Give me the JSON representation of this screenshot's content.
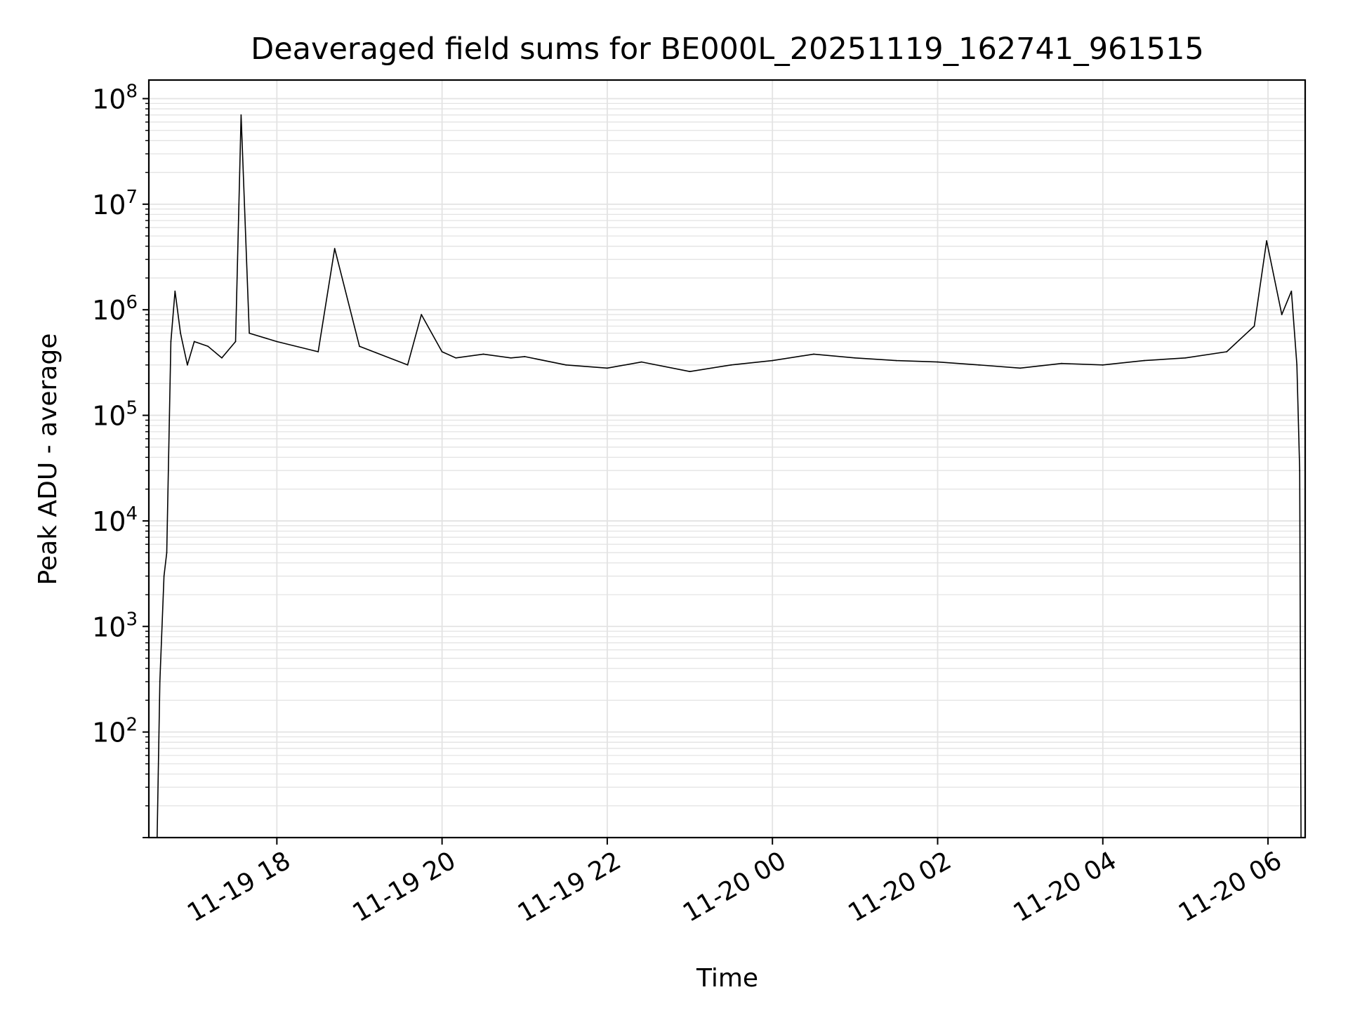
{
  "chart_data": {
    "type": "line",
    "title": "Deaveraged field sums for BE000L_20251119_162741_961515",
    "xlabel": "Time",
    "ylabel": "Peak ADU - average",
    "y_scale": "log",
    "ylim": [
      10,
      150000000
    ],
    "xlim": [
      "2025-11-19 16:27",
      "2025-11-20 06:27"
    ],
    "grid": true,
    "line_color": "#000000",
    "grid_color": "#e3e3e3",
    "x_ticks": [
      {
        "time": "2025-11-19 18:00",
        "label": "11-19 18"
      },
      {
        "time": "2025-11-19 20:00",
        "label": "11-19 20"
      },
      {
        "time": "2025-11-19 22:00",
        "label": "11-19 22"
      },
      {
        "time": "2025-11-20 00:00",
        "label": "11-20 00"
      },
      {
        "time": "2025-11-20 02:00",
        "label": "11-20 02"
      },
      {
        "time": "2025-11-20 04:00",
        "label": "11-20 04"
      },
      {
        "time": "2025-11-20 06:00",
        "label": "11-20 06"
      }
    ],
    "y_ticks": [
      {
        "value": 100,
        "base": "10",
        "exp": "2"
      },
      {
        "value": 1000,
        "base": "10",
        "exp": "3"
      },
      {
        "value": 10000,
        "base": "10",
        "exp": "4"
      },
      {
        "value": 100000,
        "base": "10",
        "exp": "5"
      },
      {
        "value": 1000000,
        "base": "10",
        "exp": "6"
      },
      {
        "value": 10000000,
        "base": "10",
        "exp": "7"
      },
      {
        "value": 100000000,
        "base": "10",
        "exp": "8"
      }
    ],
    "series": [
      {
        "x": [
          "2025-11-19 16:33",
          "2025-11-19 16:35",
          "2025-11-19 16:38",
          "2025-11-19 16:40",
          "2025-11-19 16:43",
          "2025-11-19 16:46",
          "2025-11-19 16:50",
          "2025-11-19 16:55",
          "2025-11-19 17:00",
          "2025-11-19 17:10",
          "2025-11-19 17:20",
          "2025-11-19 17:30",
          "2025-11-19 17:34",
          "2025-11-19 17:40",
          "2025-11-19 18:00",
          "2025-11-19 18:30",
          "2025-11-19 18:42",
          "2025-11-19 19:00",
          "2025-11-19 19:35",
          "2025-11-19 19:45",
          "2025-11-19 20:00",
          "2025-11-19 20:10",
          "2025-11-19 20:30",
          "2025-11-19 20:50",
          "2025-11-19 21:00",
          "2025-11-19 21:30",
          "2025-11-19 22:00",
          "2025-11-19 22:25",
          "2025-11-19 23:00",
          "2025-11-19 23:30",
          "2025-11-20 00:00",
          "2025-11-20 00:30",
          "2025-11-20 01:00",
          "2025-11-20 01:30",
          "2025-11-20 02:00",
          "2025-11-20 02:30",
          "2025-11-20 03:00",
          "2025-11-20 03:30",
          "2025-11-20 04:00",
          "2025-11-20 04:30",
          "2025-11-20 05:00",
          "2025-11-20 05:30",
          "2025-11-20 05:50",
          "2025-11-20 05:59",
          "2025-11-20 06:10",
          "2025-11-20 06:17",
          "2025-11-20 06:21",
          "2025-11-20 06:23",
          "2025-11-20 06:24"
        ],
        "y": [
          10,
          300,
          3000,
          5000,
          500000,
          1500000,
          600000,
          300000,
          500000,
          450000,
          350000,
          500000,
          70000000,
          600000,
          500000,
          400000,
          3800000,
          450000,
          300000,
          900000,
          400000,
          350000,
          380000,
          350000,
          360000,
          300000,
          280000,
          320000,
          260000,
          300000,
          330000,
          380000,
          350000,
          330000,
          320000,
          300000,
          280000,
          310000,
          300000,
          330000,
          350000,
          400000,
          700000,
          4500000,
          900000,
          1500000,
          300000,
          30000,
          10
        ]
      }
    ]
  }
}
